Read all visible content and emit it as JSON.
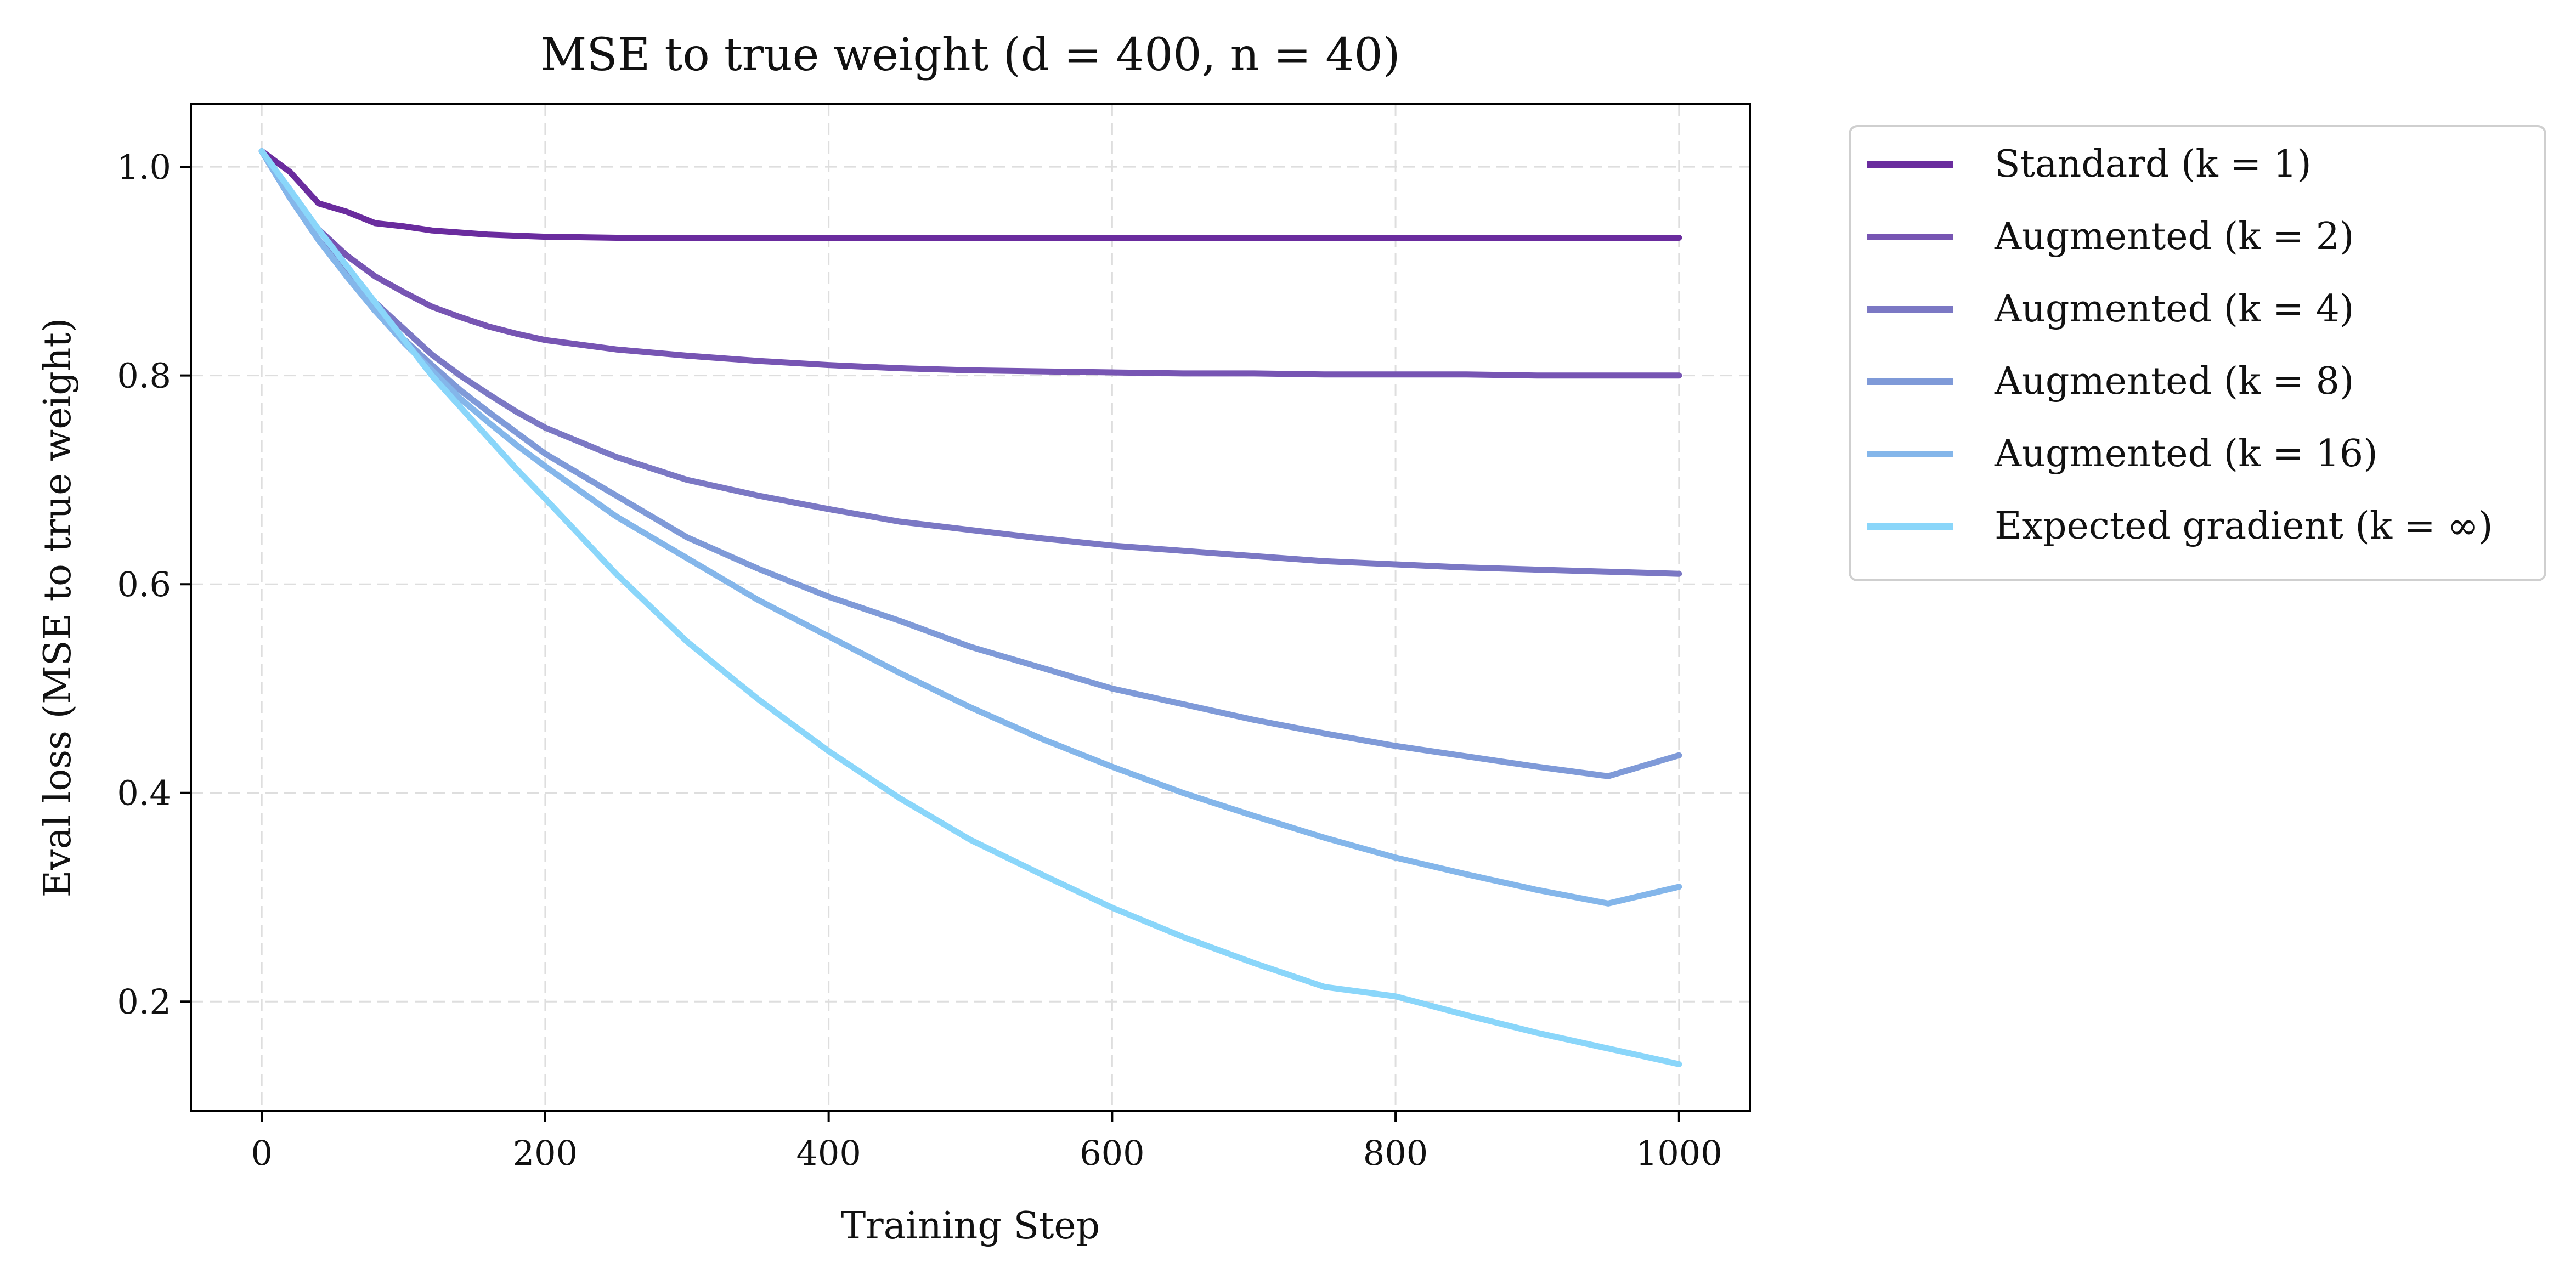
{
  "chart_data": {
    "type": "line",
    "title": "MSE to true weight (d = 400, n = 40)",
    "xlabel": "Training Step",
    "ylabel": "Eval loss (MSE to true weight)",
    "xlim": [
      -50,
      1050
    ],
    "ylim": [
      0.095,
      1.06
    ],
    "xticks": [
      0,
      200,
      400,
      600,
      800,
      1000
    ],
    "yticks": [
      0.2,
      0.4,
      0.6,
      0.8,
      1.0
    ],
    "xtick_labels": [
      "0",
      "200",
      "400",
      "600",
      "800",
      "1000"
    ],
    "ytick_labels": [
      "0.2",
      "0.4",
      "0.6",
      "0.8",
      "1.0"
    ],
    "grid": true,
    "legend_position": "outside-right",
    "x": [
      0,
      20,
      40,
      60,
      80,
      100,
      120,
      140,
      160,
      180,
      200,
      250,
      300,
      350,
      400,
      450,
      500,
      550,
      600,
      650,
      700,
      750,
      800,
      850,
      900,
      950,
      1000
    ],
    "series": [
      {
        "name": "Standard (k = 1)",
        "color": "#6a2c9e",
        "values": [
          1.015,
          0.995,
          0.965,
          0.957,
          0.946,
          0.943,
          0.939,
          0.937,
          0.935,
          0.934,
          0.933,
          0.932,
          0.932,
          0.932,
          0.932,
          0.932,
          0.932,
          0.932,
          0.932,
          0.932,
          0.932,
          0.932,
          0.932,
          0.932,
          0.932,
          0.932,
          0.932
        ]
      },
      {
        "name": "Augmented (k = 2)",
        "color": "#7755b3",
        "values": [
          1.015,
          0.975,
          0.94,
          0.915,
          0.895,
          0.88,
          0.866,
          0.856,
          0.847,
          0.84,
          0.834,
          0.825,
          0.819,
          0.814,
          0.81,
          0.807,
          0.805,
          0.804,
          0.803,
          0.802,
          0.802,
          0.801,
          0.801,
          0.801,
          0.8,
          0.8,
          0.8
        ]
      },
      {
        "name": "Augmented (k = 4)",
        "color": "#7b78c4",
        "values": [
          1.015,
          0.97,
          0.93,
          0.9,
          0.87,
          0.845,
          0.82,
          0.8,
          0.782,
          0.765,
          0.75,
          0.722,
          0.7,
          0.685,
          0.672,
          0.66,
          0.652,
          0.644,
          0.637,
          0.632,
          0.627,
          0.622,
          0.619,
          0.616,
          0.614,
          0.612,
          0.61
        ]
      },
      {
        "name": "Augmented (k = 8)",
        "color": "#7f9ad8",
        "values": [
          1.015,
          0.97,
          0.93,
          0.895,
          0.862,
          0.835,
          0.81,
          0.786,
          0.765,
          0.745,
          0.725,
          0.685,
          0.645,
          0.615,
          0.588,
          0.565,
          0.54,
          0.52,
          0.5,
          0.485,
          0.47,
          0.457,
          0.445,
          0.435,
          0.425,
          0.416,
          0.436
        ]
      },
      {
        "name": "Augmented (k = 16)",
        "color": "#84b6ea",
        "values": [
          1.015,
          0.97,
          0.93,
          0.895,
          0.862,
          0.832,
          0.805,
          0.778,
          0.755,
          0.733,
          0.713,
          0.665,
          0.625,
          0.585,
          0.55,
          0.515,
          0.482,
          0.452,
          0.425,
          0.4,
          0.378,
          0.357,
          0.338,
          0.322,
          0.307,
          0.294,
          0.31
        ]
      },
      {
        "name": "Expected gradient (k = ∞)",
        "color": "#8ad6fa",
        "values": [
          1.015,
          0.978,
          0.94,
          0.905,
          0.87,
          0.835,
          0.8,
          0.77,
          0.74,
          0.71,
          0.682,
          0.61,
          0.545,
          0.49,
          0.44,
          0.395,
          0.355,
          0.322,
          0.29,
          0.262,
          0.237,
          0.214,
          0.205,
          0.187,
          0.17,
          0.155,
          0.14
        ]
      }
    ]
  }
}
